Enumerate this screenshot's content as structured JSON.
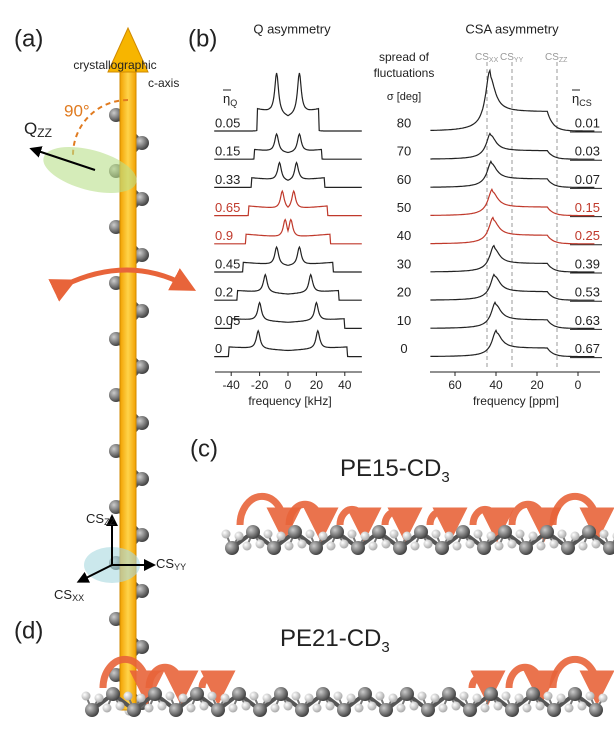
{
  "panel_a": {
    "label": "(a)",
    "axis_line1": "crystallographic",
    "axis_line2": "c-axis",
    "angle": "90°",
    "q": "Q",
    "q_sub": "ZZ",
    "cs": "CS",
    "cs_zz": "ZZ",
    "cs_yy": "YY",
    "cs_xx": "XX"
  },
  "panel_b": {
    "label": "(b)",
    "q_title": "Q asymmetry",
    "csa_title": "CSA asymmetry",
    "spread1": "spread of",
    "spread2": "fluctuations",
    "sigma": "σ [deg]",
    "eta": "η",
    "eta_q_sub": "Q",
    "eta_cs_sub": "CS",
    "eta_q": [
      "0.05",
      "0.15",
      "0.33",
      "0.65",
      "0.9",
      "0.45",
      "0.2",
      "0.05",
      "0"
    ],
    "sigma_values": [
      "80",
      "70",
      "60",
      "50",
      "40",
      "30",
      "20",
      "10",
      "0"
    ],
    "eta_cs": [
      "0.01",
      "0.03",
      "0.07",
      "0.15",
      "0.25",
      "0.39",
      "0.53",
      "0.63",
      "0.67"
    ],
    "q_ticks": [
      "-40",
      "-20",
      "0",
      "20",
      "40"
    ],
    "q_xlabel": "frequency [kHz]",
    "csa_ticks": [
      "60",
      "40",
      "20",
      "0"
    ],
    "csa_xlabel": "frequency [ppm]",
    "cs": "CS",
    "cs_xx": "XX",
    "cs_yy": "YY",
    "cs_zz": "ZZ"
  },
  "panel_c": {
    "label": "(c)",
    "title": "PE15-CD",
    "title_sub": "3"
  },
  "panel_d": {
    "label": "(d)",
    "title": "PE21-CD",
    "title_sub": "3"
  }
}
